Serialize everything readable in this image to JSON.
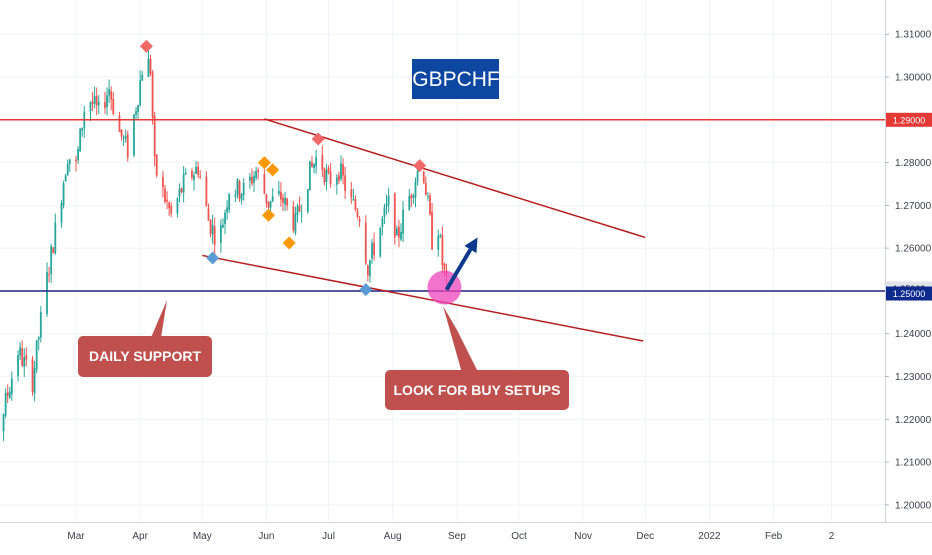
{
  "chart_data": {
    "type": "candlestick",
    "symbol": "GBPCHF",
    "title": "GBPCHF",
    "colors": {
      "up": "#26a69a",
      "down": "#ef5350",
      "resistance": "#e53935",
      "support": "#1a237e",
      "channel": "#b71c1c",
      "callout": "#c0504d",
      "title_bg": "#0d47a1",
      "arrow": "#0d3a8c",
      "highlight": "#ee44bb",
      "swing_high": "#f06868",
      "swing_low": "#5b9bd5",
      "signal": "#ff9800"
    },
    "y_axis": {
      "position": "right",
      "ylim": [
        1.196,
        1.318
      ],
      "ticks": [
        "1.31000",
        "1.30000",
        "1.28000",
        "1.27000",
        "1.26000",
        "1.24000",
        "1.23000",
        "1.22000",
        "1.21000",
        "1.20000"
      ],
      "labels": [
        {
          "text": "1.29000",
          "value": 1.29,
          "color": "#e53935"
        },
        {
          "text": "1.25063",
          "value": 1.2506,
          "color": "#e0e3eb"
        },
        {
          "text": "1.25000",
          "value": 1.2494,
          "color": "#0d2a8c"
        }
      ]
    },
    "x_axis": {
      "ticks": [
        {
          "label": "Mar",
          "date": "2021-03-01"
        },
        {
          "label": "Apr",
          "date": "2021-04-01"
        },
        {
          "label": "May",
          "date": "2021-05-01"
        },
        {
          "label": "Jun",
          "date": "2021-06-01"
        },
        {
          "label": "Jul",
          "date": "2021-07-01"
        },
        {
          "label": "Aug",
          "date": "2021-08-01"
        },
        {
          "label": "Sep",
          "date": "2021-09-01"
        },
        {
          "label": "Oct",
          "date": "2021-10-01"
        },
        {
          "label": "Nov",
          "date": "2021-11-01"
        },
        {
          "label": "Dec",
          "date": "2021-12-01"
        },
        {
          "label": "2022",
          "date": "2022-01-01"
        },
        {
          "label": "Feb",
          "date": "2022-02-01"
        },
        {
          "label": "2",
          "date": "2022-03-01"
        }
      ]
    },
    "price_path": [
      [
        "2021-01-11",
        1.209
      ],
      [
        "2021-01-18",
        1.2135
      ],
      [
        "2021-01-25",
        1.222
      ],
      [
        "2021-02-01",
        1.236
      ],
      [
        "2021-02-08",
        1.229
      ],
      [
        "2021-02-14",
        1.25
      ],
      [
        "2021-02-20",
        1.267
      ],
      [
        "2021-02-25",
        1.282
      ],
      [
        "2021-03-01",
        1.279
      ],
      [
        "2021-03-06",
        1.296
      ],
      [
        "2021-03-12",
        1.2915
      ],
      [
        "2021-03-17",
        1.2975
      ],
      [
        "2021-03-22",
        1.287
      ],
      [
        "2021-03-26",
        1.283
      ],
      [
        "2021-03-31",
        1.296
      ],
      [
        "2021-04-03",
        1.305
      ],
      [
        "2021-04-06",
        1.302
      ],
      [
        "2021-04-08",
        1.279
      ],
      [
        "2021-04-12",
        1.273
      ],
      [
        "2021-04-16",
        1.2675
      ],
      [
        "2021-04-22",
        1.275
      ],
      [
        "2021-04-29",
        1.279
      ],
      [
        "2021-05-04",
        1.2665
      ],
      [
        "2021-05-09",
        1.2615
      ],
      [
        "2021-05-14",
        1.274
      ],
      [
        "2021-05-21",
        1.2735
      ],
      [
        "2021-05-27",
        1.278
      ],
      [
        "2021-06-02",
        1.2705
      ],
      [
        "2021-06-08",
        1.272
      ],
      [
        "2021-06-15",
        1.2655
      ],
      [
        "2021-06-21",
        1.2765
      ],
      [
        "2021-06-26",
        1.282
      ],
      [
        "2021-07-01",
        1.2755
      ],
      [
        "2021-07-06",
        1.2785
      ],
      [
        "2021-07-12",
        1.2705
      ],
      [
        "2021-07-16",
        1.268
      ],
      [
        "2021-07-20",
        1.2555
      ],
      [
        "2021-07-25",
        1.2635
      ],
      [
        "2021-07-31",
        1.2715
      ],
      [
        "2021-08-03",
        1.262
      ],
      [
        "2021-08-08",
        1.2705
      ],
      [
        "2021-08-13",
        1.278
      ],
      [
        "2021-08-16",
        1.2775
      ],
      [
        "2021-08-20",
        1.262
      ],
      [
        "2021-08-23",
        1.265
      ],
      [
        "2021-08-25",
        1.2565
      ],
      [
        "2021-08-27",
        1.2515
      ]
    ],
    "lines": [
      {
        "name": "resistance",
        "type": "horizontal",
        "value": 1.29
      },
      {
        "name": "daily-support",
        "type": "horizontal",
        "value": 1.25
      },
      {
        "name": "channel-upper",
        "type": "trend",
        "from": [
          "2021-05-31",
          1.2902
        ],
        "to": [
          "2021-12-01",
          1.2625
        ]
      },
      {
        "name": "channel-lower",
        "type": "trend",
        "from": [
          "2021-05-01",
          1.2583
        ],
        "to": [
          "2021-11-30",
          1.2383
        ]
      }
    ],
    "markers": [
      {
        "kind": "swing-high",
        "date": "2021-04-04",
        "value": 1.3072
      },
      {
        "kind": "swing-high",
        "date": "2021-06-26",
        "value": 1.2855
      },
      {
        "kind": "swing-high",
        "date": "2021-08-14",
        "value": 1.2793
      },
      {
        "kind": "swing-low",
        "date": "2021-05-06",
        "value": 1.2577
      },
      {
        "kind": "swing-low",
        "date": "2021-07-19",
        "value": 1.2503
      },
      {
        "kind": "signal",
        "date": "2021-05-31",
        "value": 1.28
      },
      {
        "kind": "signal",
        "date": "2021-06-04",
        "value": 1.2783
      },
      {
        "kind": "signal",
        "date": "2021-06-02",
        "value": 1.2677
      },
      {
        "kind": "signal",
        "date": "2021-06-12",
        "value": 1.2612
      }
    ],
    "highlight_zone": {
      "date": "2021-08-26",
      "value": 1.2508
    },
    "projection_arrow": {
      "from": [
        "2021-08-27",
        1.2503
      ],
      "to": [
        "2021-09-11",
        1.2625
      ]
    },
    "annotations": [
      {
        "name": "daily-support",
        "text": "DAILY SUPPORT"
      },
      {
        "name": "buy-setups",
        "text": "LOOK FOR BUY SETUPS"
      }
    ]
  }
}
